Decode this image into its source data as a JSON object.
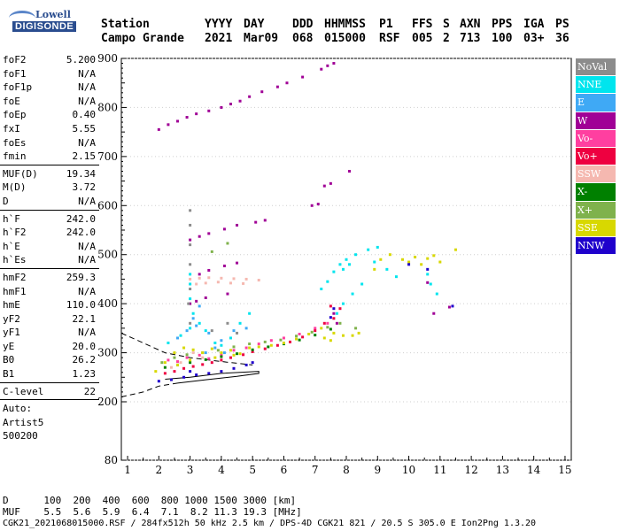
{
  "logo": {
    "brand": "Lowell",
    "name": "DIGISONDE"
  },
  "header": {
    "row1": [
      "Station",
      "YYYY",
      "DAY",
      "DDD",
      "HHMMSS",
      "P1",
      "FFS",
      "S",
      "AXN",
      "PPS",
      "IGA",
      "PS"
    ],
    "row2": [
      "Campo Grande",
      "2021",
      "Mar09",
      "068",
      "015000",
      "RSF",
      "005",
      "2",
      "713",
      "100",
      "03+",
      "36"
    ]
  },
  "params": {
    "group1": [
      {
        "k": "foF2",
        "v": "5.200"
      },
      {
        "k": "foF1",
        "v": "N/A"
      },
      {
        "k": "foF1p",
        "v": "N/A"
      },
      {
        "k": "foE",
        "v": "N/A"
      },
      {
        "k": "foEp",
        "v": "0.40"
      },
      {
        "k": "fxI",
        "v": "5.55"
      },
      {
        "k": "foEs",
        "v": "N/A"
      },
      {
        "k": "fmin",
        "v": "2.15"
      }
    ],
    "group2": [
      {
        "k": "MUF(D)",
        "v": "19.34"
      },
      {
        "k": "M(D)",
        "v": "3.72"
      },
      {
        "k": "D",
        "v": "N/A"
      }
    ],
    "group3": [
      {
        "k": "h`F",
        "v": "242.0"
      },
      {
        "k": "h`F2",
        "v": "242.0"
      },
      {
        "k": "h`E",
        "v": "N/A"
      },
      {
        "k": "h`Es",
        "v": "N/A"
      }
    ],
    "group4": [
      {
        "k": "hmF2",
        "v": "259.3"
      },
      {
        "k": "hmF1",
        "v": "N/A"
      },
      {
        "k": "hmE",
        "v": "110.0"
      },
      {
        "k": "yF2",
        "v": "22.1"
      },
      {
        "k": "yF1",
        "v": "N/A"
      },
      {
        "k": "yE",
        "v": "20.0"
      },
      {
        "k": "B0",
        "v": "26.2"
      },
      {
        "k": "B1",
        "v": "1.23"
      }
    ],
    "group5": [
      {
        "k": "C-level",
        "v": "22"
      }
    ],
    "autoscaling": [
      "Auto:",
      "Artist5",
      "500200"
    ]
  },
  "legend": [
    {
      "label": "NoVal",
      "color": "#8c8c8c"
    },
    {
      "label": "NNE",
      "color": "#00e5ee"
    },
    {
      "label": "E",
      "color": "#3fa9f5"
    },
    {
      "label": "W",
      "color": "#a00096"
    },
    {
      "label": "Vo-",
      "color": "#ff3fa0"
    },
    {
      "label": "Vo+",
      "color": "#ee0040"
    },
    {
      "label": "SSW",
      "color": "#f5b8b0"
    },
    {
      "label": "X-",
      "color": "#008000"
    },
    {
      "label": "X+",
      "color": "#7fb24c"
    },
    {
      "label": "SSE",
      "color": "#d8d800"
    },
    {
      "label": "NNW",
      "color": "#1f00cc"
    }
  ],
  "footer": {
    "d_row": "D      100  200  400  600  800 1000 1500 3000 [km]",
    "muf_row": "MUF    5.5  5.6  5.9  6.4  7.1  8.2 11.3 19.3 [MHz]",
    "file_row": "CGK21_2021068015000.RSF / 284fx512h 50 kHz 2.5 km / DPS-4D CGK21 821 / 20.5 S 305.0 E Ion2Png 1.3.20"
  },
  "chart_data": {
    "type": "scatter",
    "x_ticks": [
      "1",
      "2",
      "3",
      "4",
      "5",
      "6",
      "7",
      "8",
      "9",
      "10",
      "11",
      "12",
      "13",
      "14",
      "15"
    ],
    "y_ticks": [
      "80",
      "200",
      "300",
      "400",
      "500",
      "600",
      "700",
      "800",
      "900"
    ],
    "xlim": [
      0.8,
      15.2
    ],
    "y_scale_note": "piecewise: 80 at bottom, 200-900 linear",
    "profile_lines": {
      "dashed_upper": [
        [
          0.8,
          340
        ],
        [
          1.5,
          320
        ],
        [
          2.2,
          300
        ],
        [
          3.0,
          290
        ],
        [
          4.0,
          282
        ],
        [
          5.0,
          275
        ]
      ],
      "dashed_lower": [
        [
          0.8,
          210
        ],
        [
          1.5,
          220
        ],
        [
          2.0,
          232
        ],
        [
          2.6,
          238
        ]
      ],
      "solid": [
        [
          2.6,
          238
        ],
        [
          3.5,
          245
        ],
        [
          4.5,
          252
        ],
        [
          5.2,
          258
        ],
        [
          5.2,
          262
        ],
        [
          4.0,
          258
        ],
        [
          3.0,
          250
        ],
        [
          2.2,
          246
        ]
      ]
    },
    "series": [
      {
        "name": "W",
        "points": [
          [
            2.0,
            755
          ],
          [
            2.3,
            765
          ],
          [
            2.6,
            772
          ],
          [
            2.9,
            780
          ],
          [
            3.2,
            787
          ],
          [
            3.6,
            793
          ],
          [
            4.0,
            800
          ],
          [
            4.3,
            807
          ],
          [
            4.6,
            813
          ],
          [
            4.9,
            822
          ],
          [
            5.3,
            832
          ],
          [
            5.8,
            842
          ],
          [
            6.1,
            850
          ],
          [
            6.6,
            862
          ],
          [
            7.2,
            878
          ],
          [
            7.4,
            885
          ],
          [
            7.6,
            890
          ],
          [
            3.0,
            530
          ],
          [
            3.3,
            537
          ],
          [
            3.6,
            543
          ],
          [
            4.1,
            552
          ],
          [
            4.5,
            560
          ],
          [
            5.1,
            566
          ],
          [
            5.4,
            570
          ],
          [
            3.3,
            460
          ],
          [
            3.6,
            468
          ],
          [
            4.1,
            477
          ],
          [
            4.5,
            483
          ],
          [
            7.3,
            640
          ],
          [
            7.5,
            645
          ],
          [
            8.1,
            670
          ],
          [
            6.9,
            600
          ],
          [
            7.1,
            603
          ],
          [
            3.0,
            400
          ],
          [
            3.2,
            405
          ],
          [
            3.5,
            412
          ],
          [
            4.2,
            420
          ],
          [
            10.6,
            443
          ],
          [
            11.3,
            393
          ],
          [
            10.8,
            380
          ],
          [
            7.6,
            380
          ],
          [
            7.7,
            360
          ]
        ]
      },
      {
        "name": "NNE",
        "points": [
          [
            2.3,
            320
          ],
          [
            2.7,
            335
          ],
          [
            3.0,
            350
          ],
          [
            3.1,
            380
          ],
          [
            3.3,
            360
          ],
          [
            3.5,
            345
          ],
          [
            3.8,
            320
          ],
          [
            4.0,
            315
          ],
          [
            4.3,
            330
          ],
          [
            4.6,
            360
          ],
          [
            4.9,
            380
          ],
          [
            3.0,
            410
          ],
          [
            3.0,
            440
          ],
          [
            3.0,
            460
          ],
          [
            7.2,
            430
          ],
          [
            7.4,
            445
          ],
          [
            7.6,
            465
          ],
          [
            7.8,
            480
          ],
          [
            8.0,
            490
          ],
          [
            8.3,
            500
          ],
          [
            8.7,
            510
          ],
          [
            9.0,
            515
          ],
          [
            9.3,
            470
          ],
          [
            9.6,
            455
          ],
          [
            8.5,
            440
          ],
          [
            8.2,
            420
          ],
          [
            7.9,
            400
          ],
          [
            7.7,
            380
          ],
          [
            8.9,
            485
          ],
          [
            10.7,
            440
          ],
          [
            10.9,
            420
          ],
          [
            10.6,
            460
          ],
          [
            7.9,
            470
          ],
          [
            8.1,
            480
          ]
        ]
      },
      {
        "name": "E",
        "points": [
          [
            2.6,
            330
          ],
          [
            2.9,
            345
          ],
          [
            3.2,
            355
          ],
          [
            3.6,
            340
          ],
          [
            4.0,
            325
          ],
          [
            4.4,
            345
          ],
          [
            4.8,
            350
          ],
          [
            3.1,
            370
          ],
          [
            3.3,
            395
          ],
          [
            3.5,
            300
          ],
          [
            3.8,
            310
          ],
          [
            4.1,
            300
          ]
        ]
      },
      {
        "name": "Vo-",
        "points": [
          [
            2.3,
            285
          ],
          [
            2.6,
            282
          ],
          [
            2.9,
            290
          ],
          [
            3.3,
            295
          ],
          [
            3.6,
            288
          ],
          [
            4.0,
            296
          ],
          [
            4.4,
            305
          ],
          [
            4.8,
            310
          ],
          [
            5.2,
            318
          ],
          [
            5.6,
            325
          ],
          [
            6.0,
            330
          ],
          [
            6.5,
            338
          ],
          [
            7.0,
            350
          ],
          [
            7.4,
            360
          ]
        ]
      },
      {
        "name": "Vo+",
        "points": [
          [
            2.2,
            258
          ],
          [
            2.5,
            262
          ],
          [
            2.8,
            268
          ],
          [
            3.1,
            272
          ],
          [
            3.4,
            276
          ],
          [
            3.7,
            280
          ],
          [
            4.0,
            285
          ],
          [
            4.3,
            290
          ],
          [
            4.7,
            296
          ],
          [
            5.0,
            302
          ],
          [
            5.4,
            308
          ],
          [
            5.8,
            315
          ],
          [
            6.2,
            322
          ],
          [
            6.6,
            332
          ],
          [
            7.0,
            345
          ],
          [
            7.3,
            360
          ],
          [
            7.6,
            370
          ],
          [
            7.8,
            390
          ],
          [
            7.5,
            395
          ]
        ]
      },
      {
        "name": "SSW",
        "points": [
          [
            3.0,
            450
          ],
          [
            3.3,
            452
          ],
          [
            3.6,
            453
          ],
          [
            4.0,
            452
          ],
          [
            4.4,
            451
          ],
          [
            4.8,
            450
          ],
          [
            5.2,
            448
          ],
          [
            3.2,
            440
          ],
          [
            3.5,
            442
          ],
          [
            3.9,
            444
          ],
          [
            4.3,
            442
          ],
          [
            4.7,
            441
          ],
          [
            2.4,
            270
          ],
          [
            2.7,
            280
          ],
          [
            3.1,
            300
          ],
          [
            3.4,
            290
          ]
        ]
      },
      {
        "name": "X-",
        "points": [
          [
            2.2,
            270
          ],
          [
            2.6,
            275
          ],
          [
            3.0,
            280
          ],
          [
            3.5,
            286
          ],
          [
            4.0,
            292
          ],
          [
            4.5,
            298
          ],
          [
            5.0,
            306
          ],
          [
            5.5,
            312
          ],
          [
            6.0,
            318
          ],
          [
            6.5,
            326
          ],
          [
            7.0,
            336
          ],
          [
            7.5,
            348
          ]
        ]
      },
      {
        "name": "X+",
        "points": [
          [
            2.1,
            280
          ],
          [
            2.5,
            290
          ],
          [
            2.9,
            296
          ],
          [
            3.4,
            300
          ],
          [
            3.9,
            305
          ],
          [
            4.4,
            312
          ],
          [
            4.9,
            318
          ],
          [
            5.4,
            322
          ],
          [
            5.9,
            326
          ],
          [
            6.4,
            334
          ],
          [
            6.9,
            342
          ],
          [
            7.4,
            352
          ],
          [
            7.8,
            360
          ],
          [
            4.2,
            523
          ],
          [
            3.7,
            506
          ],
          [
            8.3,
            350
          ]
        ]
      },
      {
        "name": "SSE",
        "points": [
          [
            1.9,
            262
          ],
          [
            2.2,
            280
          ],
          [
            2.5,
            300
          ],
          [
            2.8,
            310
          ],
          [
            3.1,
            306
          ],
          [
            3.4,
            300
          ],
          [
            3.7,
            308
          ],
          [
            4.0,
            300
          ],
          [
            4.3,
            305
          ],
          [
            4.6,
            298
          ],
          [
            4.9,
            310
          ],
          [
            5.2,
            312
          ],
          [
            5.6,
            315
          ],
          [
            6.0,
            320
          ],
          [
            6.4,
            328
          ],
          [
            6.8,
            338
          ],
          [
            7.2,
            350
          ],
          [
            7.6,
            340
          ],
          [
            7.9,
            335
          ],
          [
            8.2,
            335
          ],
          [
            8.4,
            340
          ],
          [
            9.8,
            490
          ],
          [
            10.0,
            485
          ],
          [
            10.2,
            495
          ],
          [
            10.4,
            480
          ],
          [
            10.6,
            492
          ],
          [
            10.8,
            498
          ],
          [
            11.0,
            485
          ],
          [
            11.5,
            510
          ],
          [
            9.1,
            490
          ],
          [
            9.4,
            500
          ],
          [
            8.9,
            470
          ],
          [
            7.3,
            330
          ],
          [
            7.5,
            325
          ],
          [
            2.6,
            275
          ],
          [
            3.0,
            285
          ],
          [
            3.8,
            290
          ],
          [
            4.4,
            295
          ]
        ]
      },
      {
        "name": "NNW",
        "points": [
          [
            2.0,
            242
          ],
          [
            2.4,
            245
          ],
          [
            2.8,
            250
          ],
          [
            3.2,
            255
          ],
          [
            3.6,
            258
          ],
          [
            4.0,
            262
          ],
          [
            4.4,
            268
          ],
          [
            4.8,
            275
          ],
          [
            5.0,
            280
          ],
          [
            3.0,
            262
          ],
          [
            7.6,
            390
          ],
          [
            7.5,
            372
          ],
          [
            11.4,
            395
          ],
          [
            10.6,
            470
          ],
          [
            10.0,
            480
          ]
        ]
      },
      {
        "name": "NoVal",
        "points": [
          [
            3.0,
            590
          ],
          [
            3.0,
            560
          ],
          [
            3.0,
            520
          ],
          [
            3.0,
            480
          ],
          [
            3.0,
            430
          ],
          [
            2.95,
            400
          ],
          [
            3.0,
            360
          ],
          [
            4.5,
            340
          ],
          [
            4.2,
            360
          ],
          [
            3.7,
            345
          ]
        ]
      }
    ]
  }
}
